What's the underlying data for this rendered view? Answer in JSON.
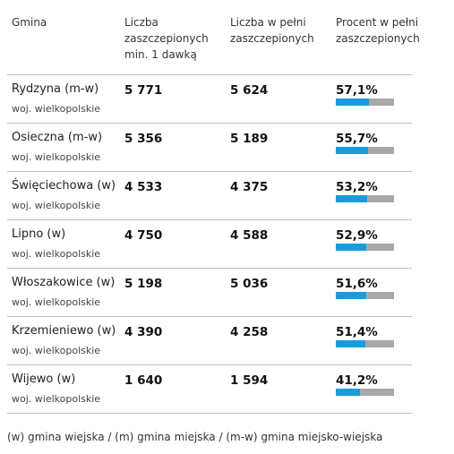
{
  "header": {
    "gmina": "Gmina",
    "col1": "Liczba zaszczepionych min. 1 dawką",
    "col2": "Liczba w pełni zaszczepionych",
    "col3": "Procent w pełni zaszczepionych"
  },
  "rows": [
    {
      "name": "Rydzyna (m-w)",
      "voivodeship": "woj. wielkopolskie",
      "one_dose": "5 771",
      "full": "5 624",
      "percent": "57,1%",
      "fraction": 0.571
    },
    {
      "name": "Osieczna (m-w)",
      "voivodeship": "woj. wielkopolskie",
      "one_dose": "5 356",
      "full": "5 189",
      "percent": "55,7%",
      "fraction": 0.557
    },
    {
      "name": "Święciechowa (w)",
      "voivodeship": "woj. wielkopolskie",
      "one_dose": "4 533",
      "full": "4 375",
      "percent": "53,2%",
      "fraction": 0.532
    },
    {
      "name": "Lipno (w)",
      "voivodeship": "woj. wielkopolskie",
      "one_dose": "4 750",
      "full": "4 588",
      "percent": "52,9%",
      "fraction": 0.529
    },
    {
      "name": "Włoszakowice (w)",
      "voivodeship": "woj. wielkopolskie",
      "one_dose": "5 198",
      "full": "5 036",
      "percent": "51,6%",
      "fraction": 0.516
    },
    {
      "name": "Krzemieniewo (w)",
      "voivodeship": "woj. wielkopolskie",
      "one_dose": "4 390",
      "full": "4 258",
      "percent": "51,4%",
      "fraction": 0.514
    },
    {
      "name": "Wijewo (w)",
      "voivodeship": "woj. wielkopolskie",
      "one_dose": "1 640",
      "full": "1 594",
      "percent": "41,2%",
      "fraction": 0.412
    }
  ],
  "footnote": "(w) gmina wiejska / (m) gmina miejska / (m-w) gmina miejsko-wiejska",
  "colors": {
    "bar_fill": "#1a9bdc",
    "bar_track": "#a8a8a8",
    "divider": "#bdbdbd"
  }
}
